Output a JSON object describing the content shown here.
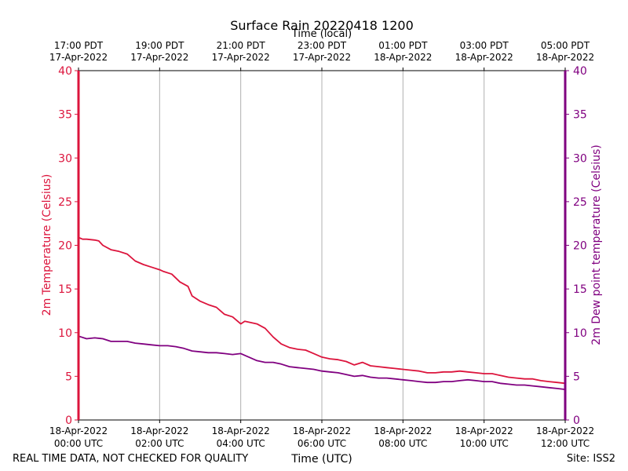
{
  "chart_data": {
    "type": "line",
    "title": "Surface Rain 20220418 1200",
    "top_axis_label": "Time (local)",
    "xlabel": "Time (UTC)",
    "ylabel_left": "2m Temperature (Celsius)",
    "ylabel_right": "2m Dew point temperature (Celsius)",
    "footer_left": "REAL TIME DATA, NOT CHECKED FOR QUALITY",
    "footer_right": "Site: ISS2",
    "xlim_hours": [
      0,
      12
    ],
    "ylim": [
      0,
      40
    ],
    "y_ticks": [
      0,
      5,
      10,
      15,
      20,
      25,
      30,
      35,
      40
    ],
    "grid": "vertical",
    "x_ticks": [
      {
        "hour": 0,
        "utc_date": "18-Apr-2022",
        "utc_time": "00:00 UTC",
        "local_time": "17:00 PDT",
        "local_date": "17-Apr-2022"
      },
      {
        "hour": 2,
        "utc_date": "18-Apr-2022",
        "utc_time": "02:00 UTC",
        "local_time": "19:00 PDT",
        "local_date": "17-Apr-2022"
      },
      {
        "hour": 4,
        "utc_date": "18-Apr-2022",
        "utc_time": "04:00 UTC",
        "local_time": "21:00 PDT",
        "local_date": "17-Apr-2022"
      },
      {
        "hour": 6,
        "utc_date": "18-Apr-2022",
        "utc_time": "06:00 UTC",
        "local_time": "23:00 PDT",
        "local_date": "17-Apr-2022"
      },
      {
        "hour": 8,
        "utc_date": "18-Apr-2022",
        "utc_time": "08:00 UTC",
        "local_time": "01:00 PDT",
        "local_date": "18-Apr-2022"
      },
      {
        "hour": 10,
        "utc_date": "18-Apr-2022",
        "utc_time": "10:00 UTC",
        "local_time": "03:00 PDT",
        "local_date": "18-Apr-2022"
      },
      {
        "hour": 12,
        "utc_date": "18-Apr-2022",
        "utc_time": "12:00 UTC",
        "local_time": "05:00 PDT",
        "local_date": "18-Apr-2022"
      }
    ],
    "series": [
      {
        "name": "2m Temperature",
        "color": "#dc143c",
        "x": [
          0,
          0.1,
          0.2,
          0.4,
          0.5,
          0.6,
          0.8,
          1.0,
          1.2,
          1.4,
          1.6,
          1.8,
          2.0,
          2.1,
          2.3,
          2.5,
          2.7,
          2.8,
          3.0,
          3.2,
          3.4,
          3.5,
          3.6,
          3.8,
          4.0,
          4.1,
          4.2,
          4.4,
          4.6,
          4.8,
          5.0,
          5.2,
          5.4,
          5.6,
          5.8,
          6.0,
          6.2,
          6.4,
          6.6,
          6.8,
          7.0,
          7.2,
          7.4,
          7.6,
          7.8,
          8.0,
          8.2,
          8.4,
          8.6,
          8.8,
          9.0,
          9.2,
          9.4,
          9.6,
          9.8,
          10.0,
          10.2,
          10.4,
          10.6,
          10.8,
          11.0,
          11.2,
          11.4,
          11.6,
          11.8,
          12.0
        ],
        "y": [
          20.9,
          20.7,
          20.7,
          20.6,
          20.5,
          20.0,
          19.5,
          19.3,
          19.0,
          18.2,
          17.8,
          17.5,
          17.2,
          17.0,
          16.7,
          15.8,
          15.3,
          14.2,
          13.6,
          13.2,
          12.9,
          12.5,
          12.1,
          11.8,
          11.0,
          11.3,
          11.2,
          11.0,
          10.5,
          9.5,
          8.7,
          8.3,
          8.1,
          8.0,
          7.6,
          7.2,
          7.0,
          6.9,
          6.7,
          6.3,
          6.6,
          6.2,
          6.1,
          6.0,
          5.9,
          5.8,
          5.7,
          5.6,
          5.4,
          5.4,
          5.5,
          5.5,
          5.6,
          5.5,
          5.4,
          5.3,
          5.3,
          5.1,
          4.9,
          4.8,
          4.7,
          4.7,
          4.5,
          4.4,
          4.3,
          4.2
        ]
      },
      {
        "name": "2m Dew point temperature",
        "color": "#800080",
        "x": [
          0,
          0.2,
          0.4,
          0.6,
          0.8,
          1.0,
          1.2,
          1.4,
          1.6,
          1.8,
          2.0,
          2.2,
          2.4,
          2.6,
          2.8,
          3.0,
          3.2,
          3.4,
          3.6,
          3.8,
          4.0,
          4.2,
          4.4,
          4.6,
          4.8,
          5.0,
          5.2,
          5.4,
          5.6,
          5.8,
          6.0,
          6.2,
          6.4,
          6.6,
          6.8,
          7.0,
          7.2,
          7.4,
          7.6,
          7.8,
          8.0,
          8.2,
          8.4,
          8.6,
          8.8,
          9.0,
          9.2,
          9.4,
          9.6,
          9.8,
          10.0,
          10.2,
          10.4,
          10.6,
          10.8,
          11.0,
          11.2,
          11.4,
          11.6,
          11.8,
          12.0
        ],
        "y": [
          9.6,
          9.3,
          9.4,
          9.3,
          9.0,
          9.0,
          9.0,
          8.8,
          8.7,
          8.6,
          8.5,
          8.5,
          8.4,
          8.2,
          7.9,
          7.8,
          7.7,
          7.7,
          7.6,
          7.5,
          7.6,
          7.2,
          6.8,
          6.6,
          6.6,
          6.4,
          6.1,
          6.0,
          5.9,
          5.8,
          5.6,
          5.5,
          5.4,
          5.2,
          5.0,
          5.1,
          4.9,
          4.8,
          4.8,
          4.7,
          4.6,
          4.5,
          4.4,
          4.3,
          4.3,
          4.4,
          4.4,
          4.5,
          4.6,
          4.5,
          4.4,
          4.4,
          4.2,
          4.1,
          4.0,
          4.0,
          3.9,
          3.8,
          3.7,
          3.6,
          3.5
        ]
      }
    ],
    "axis_colors": {
      "left": "#dc143c",
      "right": "#800080",
      "axes": "#000000",
      "grid": "#b0b0b0"
    }
  }
}
